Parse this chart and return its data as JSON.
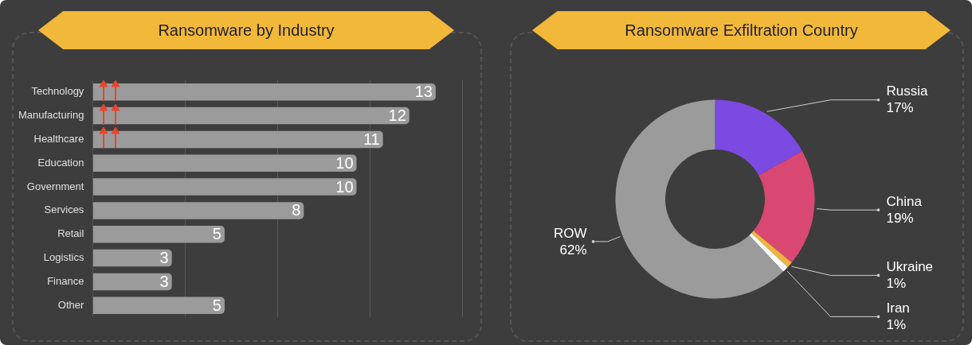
{
  "chart_data": [
    {
      "type": "bar",
      "title": "Ransomware by Industry",
      "orientation": "horizontal",
      "categories": [
        "Technology",
        "Manufacturing",
        "Healthcare",
        "Education",
        "Government",
        "Services",
        "Retail",
        "Logistics",
        "Finance",
        "Other"
      ],
      "values": [
        13,
        12,
        11,
        10,
        10,
        8,
        5,
        3,
        3,
        5
      ],
      "color": "#9b9b9b",
      "xlim": [
        0,
        14
      ],
      "xticks": [
        {
          "value": 0,
          "label": null
        },
        {
          "value": 3.5,
          "label": null
        },
        {
          "value": 7,
          "label": null
        },
        {
          "value": 10.5,
          "label": null
        },
        {
          "value": 14,
          "label": null
        }
      ],
      "grid": "x",
      "data_labels": true,
      "tick_labels": "y"
    },
    {
      "type": "donut",
      "title": "Ransomware Exfiltration Country",
      "categories": [
        "Russia",
        "China",
        "Ukraine",
        "Iran",
        "ROW"
      ],
      "values": [
        17,
        19,
        1,
        1,
        62
      ],
      "colors": [
        "#7b4ae0",
        "#d94872",
        "#f0b43c",
        "#ffffff",
        "#9b9b9b"
      ],
      "value_labels": [
        "17%",
        "19%",
        "1%",
        "1%",
        "62%"
      ]
    }
  ]
}
